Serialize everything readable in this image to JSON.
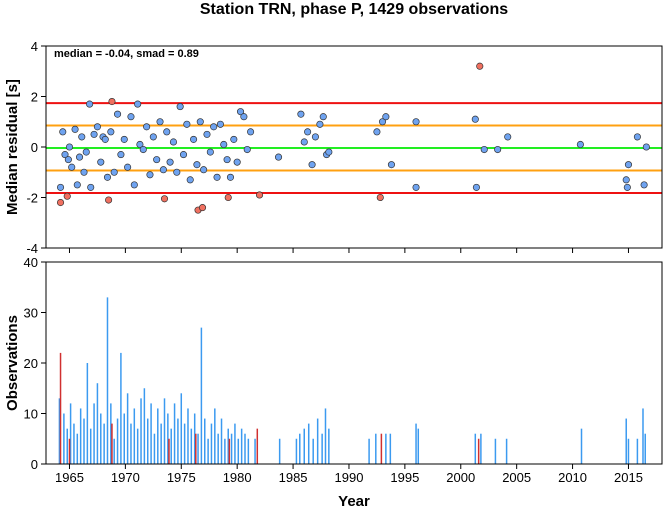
{
  "chart_data": [
    {
      "type": "scatter",
      "title": "Station TRN, phase P, 1429 observations",
      "y_label": "Median residual [s]",
      "annotation": "median = -0.04, smad = 0.89",
      "xlim": [
        1962.9,
        2018.0
      ],
      "xticks": [
        1965,
        1970,
        1975,
        1980,
        1985,
        1990,
        1995,
        2000,
        2005,
        2010,
        2015
      ],
      "ylim": [
        -4,
        4
      ],
      "yticks": [
        -4,
        -2,
        0,
        2,
        4
      ],
      "reference_lines": [
        {
          "value": 1.74,
          "color": "#ee1111"
        },
        {
          "value": 0.85,
          "color": "#ffa010"
        },
        {
          "value": -0.04,
          "color": "#22ee22"
        },
        {
          "value": -0.93,
          "color": "#ffa010"
        },
        {
          "value": -1.82,
          "color": "#ee1111"
        }
      ],
      "series": [
        {
          "color": "#6fa3f0",
          "x": [
            1964.2,
            1964.4,
            1964.6,
            1964.9,
            1965.0,
            1965.2,
            1965.5,
            1965.7,
            1965.9,
            1966.1,
            1966.3,
            1966.5,
            1966.8,
            1966.9,
            1967.2,
            1967.5,
            1967.8,
            1968.0,
            1968.2,
            1968.4,
            1968.7,
            1969.0,
            1969.3,
            1969.6,
            1969.9,
            1970.2,
            1970.5,
            1970.8,
            1971.1,
            1971.3,
            1971.6,
            1971.9,
            1972.2,
            1972.5,
            1972.8,
            1973.1,
            1973.4,
            1973.7,
            1974.0,
            1974.3,
            1974.6,
            1974.9,
            1975.2,
            1975.5,
            1975.8,
            1976.1,
            1976.4,
            1976.7,
            1977.0,
            1977.3,
            1977.6,
            1977.9,
            1978.2,
            1978.5,
            1978.8,
            1979.1,
            1979.4,
            1979.7,
            1980.0,
            1980.3,
            1980.6,
            1980.9,
            1981.2,
            1983.7,
            1985.7,
            1986.0,
            1986.3,
            1986.7,
            1987.0,
            1987.4,
            1987.7,
            1988.0,
            1988.2,
            1992.5,
            1993.0,
            1993.3,
            1993.8,
            1996.0,
            1996.0,
            2001.3,
            2001.4,
            2002.1,
            2003.3,
            2004.2,
            2010.7,
            2014.8,
            2014.9,
            2015.0,
            2015.8,
            2016.4,
            2016.6
          ],
          "values": [
            -1.6,
            0.6,
            -0.3,
            -0.5,
            0.0,
            -0.8,
            0.7,
            -1.5,
            -0.4,
            0.4,
            -1.0,
            -0.2,
            1.7,
            -1.6,
            0.5,
            0.8,
            -0.6,
            0.4,
            0.3,
            -1.2,
            0.6,
            -1.0,
            1.3,
            -0.3,
            0.3,
            -0.8,
            1.2,
            -1.5,
            1.7,
            0.1,
            -0.1,
            0.8,
            -1.1,
            0.4,
            -0.5,
            1.0,
            -0.9,
            0.6,
            -0.6,
            0.2,
            -1.0,
            1.6,
            -0.3,
            0.9,
            -1.3,
            0.3,
            -0.7,
            1.0,
            -0.9,
            0.5,
            -0.2,
            0.8,
            -1.2,
            0.9,
            0.1,
            -0.5,
            -1.2,
            0.3,
            -0.6,
            1.4,
            1.2,
            -0.1,
            0.6,
            -0.4,
            1.3,
            0.2,
            0.6,
            -0.7,
            0.4,
            0.9,
            1.2,
            -0.3,
            -0.2,
            0.6,
            1.0,
            1.2,
            -0.7,
            1.0,
            -1.6,
            1.1,
            -1.6,
            -0.1,
            -0.1,
            0.4,
            0.1,
            -1.3,
            -1.6,
            -0.7,
            0.4,
            -1.5,
            0.0
          ]
        },
        {
          "color": "#f07060",
          "x": [
            1964.2,
            1964.8,
            1968.5,
            1968.8,
            1973.5,
            1976.5,
            1976.9,
            1979.2,
            1982.0,
            1992.8,
            2001.7
          ],
          "values": [
            -2.2,
            -1.95,
            -2.1,
            1.8,
            -2.05,
            -2.5,
            -2.4,
            -2.0,
            -1.9,
            -2.0,
            3.2
          ]
        }
      ]
    },
    {
      "type": "bar",
      "x_label": "Year",
      "y_label": "Observations",
      "xlim": [
        1962.9,
        2018.0
      ],
      "xticks": [
        1965,
        1970,
        1975,
        1980,
        1985,
        1990,
        1995,
        2000,
        2005,
        2010,
        2015
      ],
      "ylim": [
        0,
        40
      ],
      "yticks": [
        0,
        10,
        20,
        30,
        40
      ],
      "series": [
        {
          "color": "#3b9af0",
          "x": [
            1964.1,
            1964.5,
            1964.8,
            1965.1,
            1965.4,
            1965.7,
            1966.0,
            1966.3,
            1966.6,
            1966.9,
            1967.2,
            1967.5,
            1967.8,
            1968.1,
            1968.4,
            1968.7,
            1969.0,
            1969.3,
            1969.6,
            1969.9,
            1970.2,
            1970.5,
            1970.8,
            1971.1,
            1971.4,
            1971.7,
            1972.0,
            1972.3,
            1972.6,
            1972.9,
            1973.2,
            1973.5,
            1973.8,
            1974.1,
            1974.4,
            1974.7,
            1975.0,
            1975.3,
            1975.6,
            1975.9,
            1976.2,
            1976.5,
            1976.8,
            1977.1,
            1977.4,
            1977.7,
            1978.0,
            1978.3,
            1978.6,
            1978.9,
            1979.2,
            1979.5,
            1979.8,
            1980.1,
            1980.4,
            1980.7,
            1981.0,
            1981.6,
            1983.8,
            1985.3,
            1985.6,
            1986.0,
            1986.4,
            1986.8,
            1987.2,
            1987.6,
            1987.9,
            1988.2,
            1991.8,
            1992.4,
            1993.3,
            1993.7,
            1996.0,
            1996.2,
            2001.3,
            2001.8,
            2003.1,
            2004.1,
            2010.8,
            2014.8,
            2015.0,
            2015.8,
            2016.3,
            2016.5
          ],
          "values": [
            13,
            10,
            7,
            12,
            8,
            6,
            11,
            9,
            20,
            7,
            12,
            16,
            10,
            8,
            33,
            12,
            5,
            9,
            22,
            10,
            14,
            8,
            11,
            7,
            13,
            15,
            9,
            12,
            6,
            11,
            8,
            13,
            10,
            7,
            12,
            9,
            14,
            8,
            11,
            7,
            10,
            6,
            27,
            9,
            5,
            8,
            11,
            6,
            9,
            5,
            7,
            6,
            8,
            5,
            7,
            6,
            5,
            5,
            5,
            5,
            6,
            7,
            8,
            5,
            9,
            6,
            11,
            7,
            5,
            6,
            6,
            6,
            8,
            7,
            6,
            6,
            5,
            5,
            7,
            9,
            5,
            5,
            11,
            6
          ]
        },
        {
          "color": "#d03030",
          "x": [
            1964.2,
            1965.0,
            1968.8,
            1973.9,
            1976.3,
            1979.3,
            1981.8,
            1992.9,
            2001.6
          ],
          "values": [
            22,
            5,
            8,
            5,
            6,
            5,
            7,
            6,
            5
          ]
        }
      ]
    }
  ]
}
